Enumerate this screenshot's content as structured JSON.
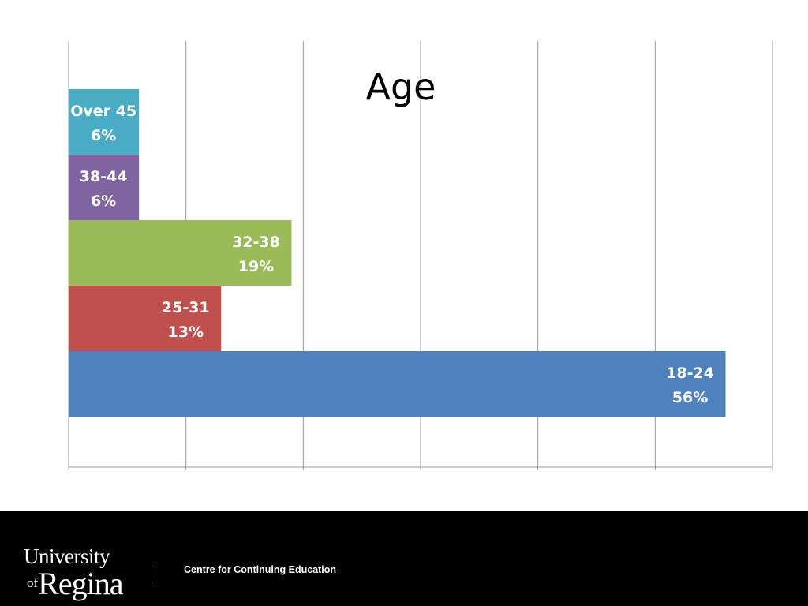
{
  "chart_data": {
    "type": "bar",
    "orientation": "horizontal",
    "title": "Age",
    "categories": [
      "18-24",
      "25-31",
      "32-38",
      "38-44",
      "Over 45"
    ],
    "values": [
      56,
      13,
      19,
      6,
      6
    ],
    "value_labels": [
      "56%",
      "13%",
      "19%",
      "6%",
      "6%"
    ],
    "xlim": [
      0,
      60
    ],
    "grid": true,
    "legend": "none",
    "colors": [
      "#4F81BD",
      "#C0504D",
      "#9BBB59",
      "#8064A2",
      "#4BACC6"
    ]
  },
  "footer": {
    "logo_line1": "University",
    "logo_of": "of",
    "logo_line2": "Regina",
    "department": "Centre for Continuing Education",
    "background": "#000000"
  }
}
